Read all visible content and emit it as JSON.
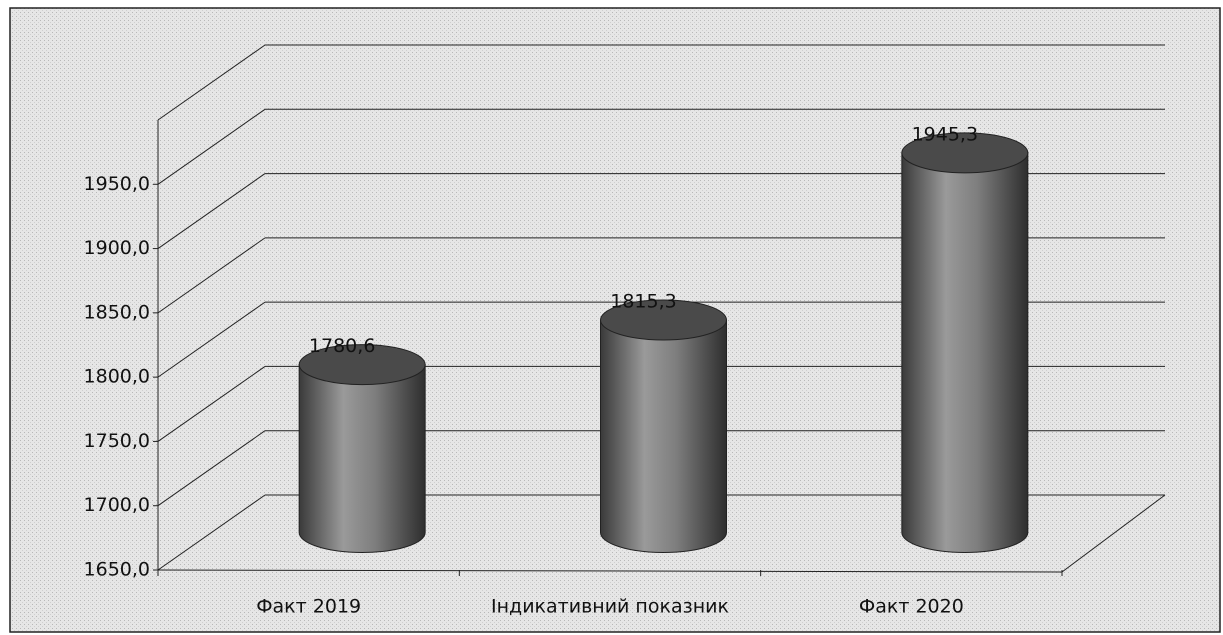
{
  "chart_data": {
    "type": "bar3d-cylinder",
    "categories": [
      "Факт 2019",
      "Індикативний показник",
      "Факт 2020"
    ],
    "values": [
      1780.6,
      1815.3,
      1945.3
    ],
    "value_labels": [
      "1780,6",
      "1815,3",
      "1945,3"
    ],
    "color": "#7a7a7a",
    "ylim": [
      1650,
      2000
    ],
    "yticks": [
      {
        "value": 1650,
        "label": "1650,0"
      },
      {
        "value": 1700,
        "label": "1700,0"
      },
      {
        "value": 1750,
        "label": "1750,0"
      },
      {
        "value": 1800,
        "label": "1800,0"
      },
      {
        "value": 1850,
        "label": "1850,0"
      },
      {
        "value": 1900,
        "label": "1900,0"
      },
      {
        "value": 1950,
        "label": "1950,0"
      }
    ],
    "grid": true
  }
}
